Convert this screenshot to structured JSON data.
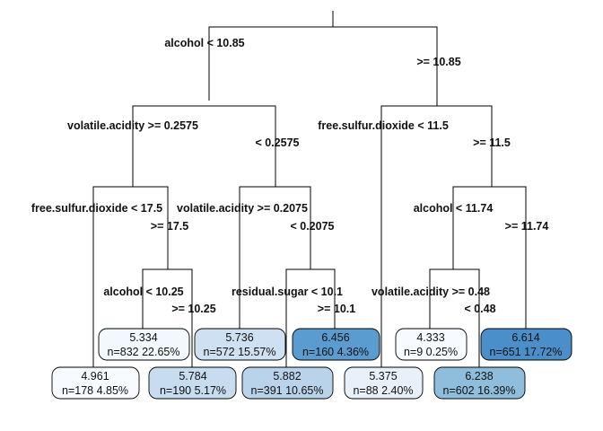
{
  "splits": {
    "root": {
      "left": "alcohol < 10.85",
      "right": ">= 10.85"
    },
    "l": {
      "left": "volatile.acidity >= 0.2575",
      "right": "< 0.2575"
    },
    "r": {
      "left": "free.sulfur.dioxide < 11.5",
      "right": ">= 11.5"
    },
    "ll": {
      "left": "free.sulfur.dioxide < 17.5",
      "right": ">= 17.5"
    },
    "lr": {
      "left": "volatile.acidity >= 0.2075",
      "right": "< 0.2075"
    },
    "rr": {
      "left": "alcohol < 11.74",
      "right": ">= 11.74"
    },
    "llr": {
      "left": "alcohol < 10.25",
      "right": ">= 10.25"
    },
    "lrr": {
      "left": "residual.sugar < 10.1",
      "right": ">= 10.1"
    },
    "rrl": {
      "left": "volatile.acidity >= 0.48",
      "right": "< 0.48"
    }
  },
  "leaves": {
    "A": {
      "value": "4.961",
      "info": "n=178  4.85%",
      "fill": "#f7fbff"
    },
    "B": {
      "value": "5.334",
      "info": "n=832  22.65%",
      "fill": "#f2f8fd"
    },
    "C": {
      "value": "5.784",
      "info": "n=190  5.17%",
      "fill": "#c8dcf0"
    },
    "D": {
      "value": "5.736",
      "info": "n=572  15.57%",
      "fill": "#cee0f2"
    },
    "E": {
      "value": "5.882",
      "info": "n=391  10.65%",
      "fill": "#b9d3ea"
    },
    "F": {
      "value": "6.456",
      "info": "n=160  4.36%",
      "fill": "#5a9bd0"
    },
    "G": {
      "value": "5.375",
      "info": "n=88  2.40%",
      "fill": "#e8f1fa"
    },
    "H": {
      "value": "4.333",
      "info": "n=9  0.25%",
      "fill": "#f7fbff"
    },
    "I": {
      "value": "6.238",
      "info": "n=602  16.39%",
      "fill": "#8fbedc"
    },
    "J": {
      "value": "6.614",
      "info": "n=651  17.72%",
      "fill": "#4a8fca"
    }
  }
}
